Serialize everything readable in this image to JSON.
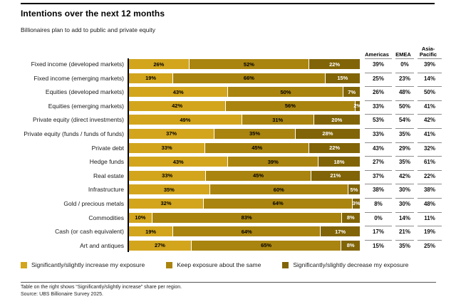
{
  "title": "Intentions over the next 12 months",
  "subtitle": "Billionaires plan to add to public and private equity",
  "footnote": "Table on the right shows “Significantly/slightly increase” share per region.",
  "source": "Source: UBS Billionaire Survey 2025.",
  "colors": {
    "increase": "#D2A51D",
    "same": "#A9840F",
    "decrease": "#816407",
    "axis": "#000000",
    "table_rule": "#8c8c8c"
  },
  "chart_data": {
    "type": "bar",
    "orientation": "horizontal",
    "stacked": true,
    "xlim": [
      0,
      100
    ],
    "value_suffix": "%",
    "grid": false,
    "legend_position": "bottom",
    "categories": [
      "Fixed income (developed markets)",
      "Fixed income (emerging markets)",
      "Equities (developed markets)",
      "Equities (emerging markets)",
      "Private equity (direct investments)",
      "Private equity (funds / funds of funds)",
      "Private debt",
      "Hedge funds",
      "Real estate",
      "Infrastructure",
      "Gold / precious metals",
      "Commodities",
      "Cash (or cash equivalent)",
      "Art and antiques"
    ],
    "series": [
      {
        "name": "Significantly/slightly increase my exposure",
        "color": "#D2A51D",
        "label_color": "#000000",
        "values": [
          26,
          19,
          43,
          42,
          49,
          37,
          33,
          43,
          33,
          35,
          32,
          10,
          19,
          27
        ]
      },
      {
        "name": "Keep exposure about the same",
        "color": "#A9840F",
        "label_color": "#000000",
        "values": [
          52,
          66,
          50,
          56,
          31,
          35,
          45,
          39,
          45,
          60,
          64,
          83,
          64,
          65
        ]
      },
      {
        "name": "Significantly/slightly decrease my exposure",
        "color": "#816407",
        "label_color": "#ffffff",
        "values": [
          22,
          15,
          7,
          2,
          20,
          28,
          22,
          18,
          21,
          5,
          3,
          8,
          17,
          8
        ]
      }
    ],
    "region_table": {
      "headers": [
        "Americas",
        "EMEA",
        "Asia-\nPacific"
      ],
      "rows": [
        [
          39,
          0,
          39
        ],
        [
          25,
          23,
          14
        ],
        [
          26,
          48,
          50
        ],
        [
          33,
          50,
          41
        ],
        [
          53,
          54,
          42
        ],
        [
          33,
          35,
          41
        ],
        [
          43,
          29,
          32
        ],
        [
          27,
          35,
          61
        ],
        [
          37,
          42,
          22
        ],
        [
          38,
          30,
          38
        ],
        [
          8,
          30,
          48
        ],
        [
          0,
          14,
          11
        ],
        [
          17,
          21,
          19
        ],
        [
          15,
          35,
          25
        ]
      ]
    }
  }
}
